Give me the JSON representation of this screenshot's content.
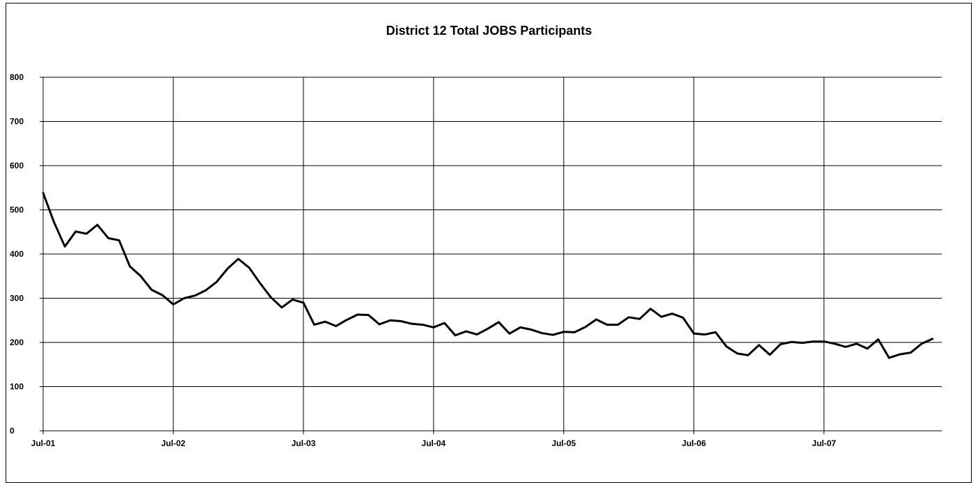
{
  "chart_data": {
    "type": "line",
    "title": "District 12 Total JOBS Participants",
    "xlabel": "",
    "ylabel": "",
    "ylim": [
      0,
      800
    ],
    "yticks": [
      "0",
      "100",
      "200",
      "300",
      "400",
      "500",
      "600",
      "700",
      "800"
    ],
    "xticks": [
      "Jul-01",
      "Jul-02",
      "Jul-03",
      "Jul-04",
      "Jul-05",
      "Jul-06",
      "Jul-07"
    ],
    "grid": true,
    "legend": "none",
    "line_color": "#000000",
    "x_start": "Jul-01",
    "x_step": "1 month",
    "series": [
      {
        "values": [
          538,
          472,
          417,
          451,
          446,
          466,
          436,
          431,
          372,
          350,
          319,
          307,
          286,
          300,
          306,
          318,
          337,
          367,
          389,
          369,
          334,
          302,
          279,
          297,
          290,
          240,
          247,
          237,
          251,
          263,
          262,
          241,
          250,
          248,
          242,
          240,
          234,
          244,
          216,
          225,
          218,
          231,
          246,
          220,
          234,
          229,
          221,
          217,
          224,
          223,
          235,
          252,
          240,
          240,
          257,
          253,
          276,
          258,
          265,
          256,
          220,
          218,
          223,
          191,
          175,
          171,
          194,
          172,
          196,
          201,
          199,
          202,
          202,
          197,
          190,
          197,
          186,
          207,
          165,
          173,
          177,
          197,
          208
        ]
      }
    ]
  }
}
